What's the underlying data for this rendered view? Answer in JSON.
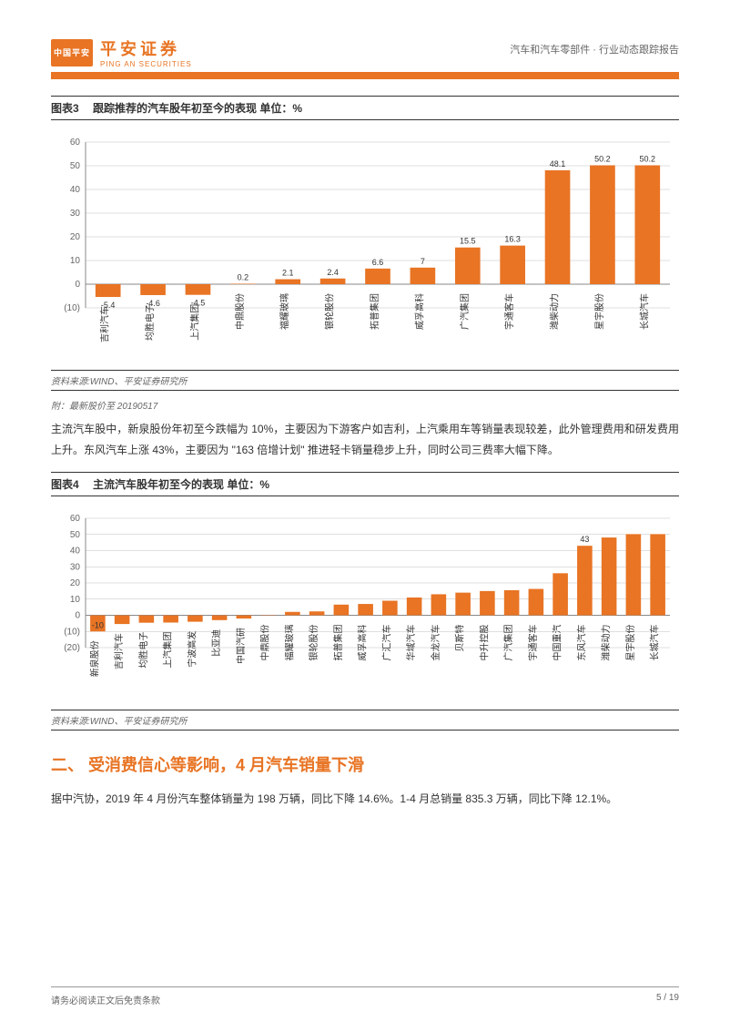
{
  "header": {
    "badge": "中国平安",
    "logo_cn": "平安证券",
    "logo_en": "PING AN SECURITIES",
    "right": "汽车和汽车零部件 · 行业动态跟踪报告"
  },
  "chart3": {
    "title_num": "图表3",
    "title": "跟踪推荐的汽车股年初至今的表现   单位：%",
    "type": "bar",
    "categories": [
      "吉利汽车",
      "均胜电子",
      "上汽集团",
      "中鼎股份",
      "福耀玻璃",
      "银轮股份",
      "拓普集团",
      "威孚高科",
      "广汽集团",
      "宇通客车",
      "潍柴动力",
      "星宇股份",
      "长城汽车"
    ],
    "values": [
      -5.4,
      -4.6,
      -4.5,
      0.2,
      2.1,
      2.4,
      6.6,
      7.0,
      15.5,
      16.3,
      48.1,
      50.2,
      50.2
    ],
    "show_labels": true,
    "bar_color": "#e87424",
    "ylim": [
      -10,
      60
    ],
    "ytick_step": 10,
    "neg_color": "#c00000",
    "grid_color": "#bfbfbf",
    "label_fontsize": 9,
    "axis_fontsize": 10,
    "bar_width": 0.56,
    "background": "#ffffff",
    "src": "资料来源:WIND、平安证券研究所"
  },
  "note3": "附：最新股价至 20190517",
  "para1": "主流汽车股中，新泉股份年初至今跌幅为 10%，主要因为下游客户如吉利，上汽乘用车等销量表现较差，此外管理费用和研发费用上升。东风汽车上涨 43%，主要因为 \"163 倍增计划\" 推进轻卡销量稳步上升，同时公司三费率大幅下降。",
  "chart4": {
    "title_num": "图表4",
    "title": "主流汽车股年初至今的表现   单位：%",
    "type": "bar",
    "categories": [
      "新泉股份",
      "吉利汽车",
      "均胜电子",
      "上汽集团",
      "宁波高发",
      "比亚迪",
      "中国汽研",
      "中鼎股份",
      "福耀玻璃",
      "银轮股份",
      "拓普集团",
      "威孚高科",
      "广汇汽车",
      "华域汽车",
      "金龙汽车",
      "贝斯特",
      "中升控股",
      "广汽集团",
      "宇通客车",
      "中国重汽",
      "东风汽车",
      "潍柴动力",
      "星宇股份",
      "长城汽车"
    ],
    "values": [
      -10,
      -5.4,
      -4.6,
      -4.5,
      -4,
      -3,
      -2,
      0.2,
      2.1,
      2.4,
      6.6,
      7.0,
      9,
      11,
      13,
      14,
      15,
      15.5,
      16.3,
      26,
      43,
      48.1,
      50.2,
      50.2
    ],
    "show_labels": false,
    "highlight": {
      "category": "新泉股份",
      "label": "-10"
    },
    "highlight2": {
      "category": "东风汽车",
      "label": "43"
    },
    "bar_color": "#e87424",
    "ylim": [
      -20,
      60
    ],
    "ytick_step": 10,
    "neg_color": "#c00000",
    "grid_color": "#bfbfbf",
    "label_fontsize": 9,
    "axis_fontsize": 10,
    "bar_width": 0.62,
    "background": "#ffffff",
    "src": "资料来源:WIND、平安证券研究所"
  },
  "section2": {
    "heading": "二、 受消费信心等影响，4 月汽车销量下滑",
    "para": "据中汽协，2019 年 4 月份汽车整体销量为 198 万辆，同比下降 14.6%。1-4 月总销量 835.3 万辆，同比下降 12.1%。"
  },
  "footer": {
    "left": "请务必阅读正文后免责条款",
    "right": "5 / 19"
  }
}
